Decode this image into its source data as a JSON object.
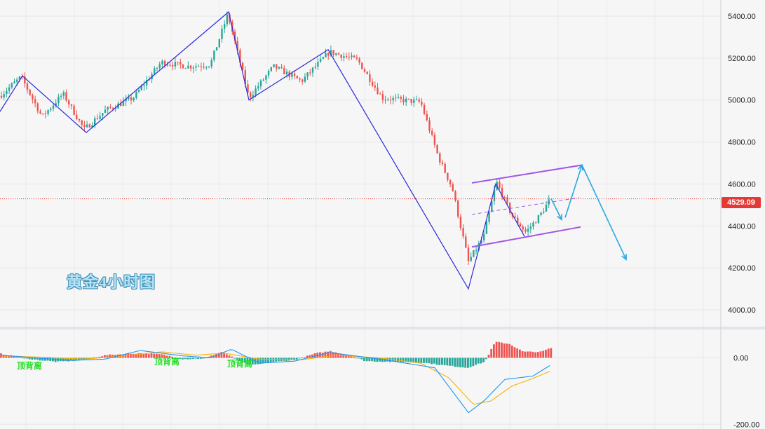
{
  "title": "黄金4小时图",
  "current_price": "4529.09",
  "colors": {
    "up": "#26a69a",
    "down": "#ef5350",
    "zigzag": "#2a2ad4",
    "channel": "#a155e8",
    "projection": "#29a7e0",
    "macd_pos": "#ef5350",
    "macd_neg": "#26a69a",
    "dif": "#2196f3",
    "dea": "#f5b400",
    "divergence_text": "#22e022"
  },
  "chart_data": [
    {
      "type": "candlestick",
      "title": "黄金4小时图",
      "ylim": [
        3920,
        5450
      ],
      "y_ticks": [
        "5400.00",
        "5200.00",
        "5000.00",
        "4800.00",
        "4600.00",
        "4400.00",
        "4200.00",
        "4000.00"
      ],
      "current_price": 4529.09,
      "swing_points": [
        4945,
        5115,
        4845,
        5420,
        5000,
        5240,
        4100,
        4600,
        4350,
        4690,
        4240
      ],
      "channel_upper": [
        4605,
        4690
      ],
      "channel_lower": [
        4300,
        4395
      ],
      "anchor_closes": [
        [
          0,
          5020
        ],
        [
          30,
          5110
        ],
        [
          60,
          4920
        ],
        [
          90,
          5030
        ],
        [
          120,
          4860
        ],
        [
          150,
          4950
        ],
        [
          190,
          5010
        ],
        [
          230,
          5180
        ],
        [
          270,
          5160
        ],
        [
          300,
          5170
        ],
        [
          325,
          5410
        ],
        [
          355,
          5010
        ],
        [
          390,
          5160
        ],
        [
          430,
          5090
        ],
        [
          470,
          5230
        ],
        [
          510,
          5190
        ],
        [
          545,
          5010
        ],
        [
          600,
          4990
        ],
        [
          625,
          4730
        ],
        [
          645,
          4580
        ],
        [
          668,
          4230
        ],
        [
          690,
          4350
        ],
        [
          708,
          4610
        ],
        [
          730,
          4450
        ],
        [
          750,
          4370
        ],
        [
          770,
          4450
        ],
        [
          785,
          4530
        ]
      ]
    },
    {
      "type": "bar",
      "name": "MACD",
      "ylim": [
        -210,
        60
      ],
      "y_ticks": [
        "0.00",
        "-200.00"
      ],
      "annotations": [
        "顶背离",
        "顶背离",
        "顶背离"
      ],
      "hist_anchors": [
        [
          0,
          12
        ],
        [
          25,
          2
        ],
        [
          50,
          -6
        ],
        [
          80,
          -12
        ],
        [
          110,
          -8
        ],
        [
          150,
          8
        ],
        [
          200,
          14
        ],
        [
          230,
          10
        ],
        [
          260,
          -4
        ],
        [
          290,
          -2
        ],
        [
          315,
          18
        ],
        [
          345,
          -14
        ],
        [
          360,
          -22
        ],
        [
          390,
          -12
        ],
        [
          420,
          -6
        ],
        [
          450,
          14
        ],
        [
          470,
          20
        ],
        [
          500,
          6
        ],
        [
          520,
          -10
        ],
        [
          560,
          -12
        ],
        [
          600,
          -14
        ],
        [
          630,
          -22
        ],
        [
          665,
          -30
        ],
        [
          690,
          -12
        ],
        [
          705,
          48
        ],
        [
          725,
          42
        ],
        [
          745,
          18
        ],
        [
          770,
          18
        ],
        [
          785,
          30
        ]
      ],
      "dif_anchors": [
        [
          0,
          8
        ],
        [
          50,
          0
        ],
        [
          100,
          -8
        ],
        [
          150,
          -4
        ],
        [
          200,
          22
        ],
        [
          260,
          6
        ],
        [
          300,
          0
        ],
        [
          330,
          26
        ],
        [
          370,
          -16
        ],
        [
          420,
          -10
        ],
        [
          470,
          16
        ],
        [
          520,
          2
        ],
        [
          560,
          -10
        ],
        [
          620,
          -30
        ],
        [
          668,
          -165
        ],
        [
          690,
          -130
        ],
        [
          720,
          -65
        ],
        [
          760,
          -55
        ],
        [
          785,
          -22
        ]
      ],
      "dea_anchors": [
        [
          0,
          6
        ],
        [
          60,
          2
        ],
        [
          120,
          -4
        ],
        [
          180,
          6
        ],
        [
          230,
          18
        ],
        [
          280,
          8
        ],
        [
          320,
          14
        ],
        [
          370,
          -4
        ],
        [
          430,
          -6
        ],
        [
          480,
          8
        ],
        [
          540,
          0
        ],
        [
          600,
          -16
        ],
        [
          640,
          -60
        ],
        [
          675,
          -140
        ],
        [
          700,
          -130
        ],
        [
          730,
          -85
        ],
        [
          760,
          -62
        ],
        [
          785,
          -40
        ]
      ]
    }
  ]
}
